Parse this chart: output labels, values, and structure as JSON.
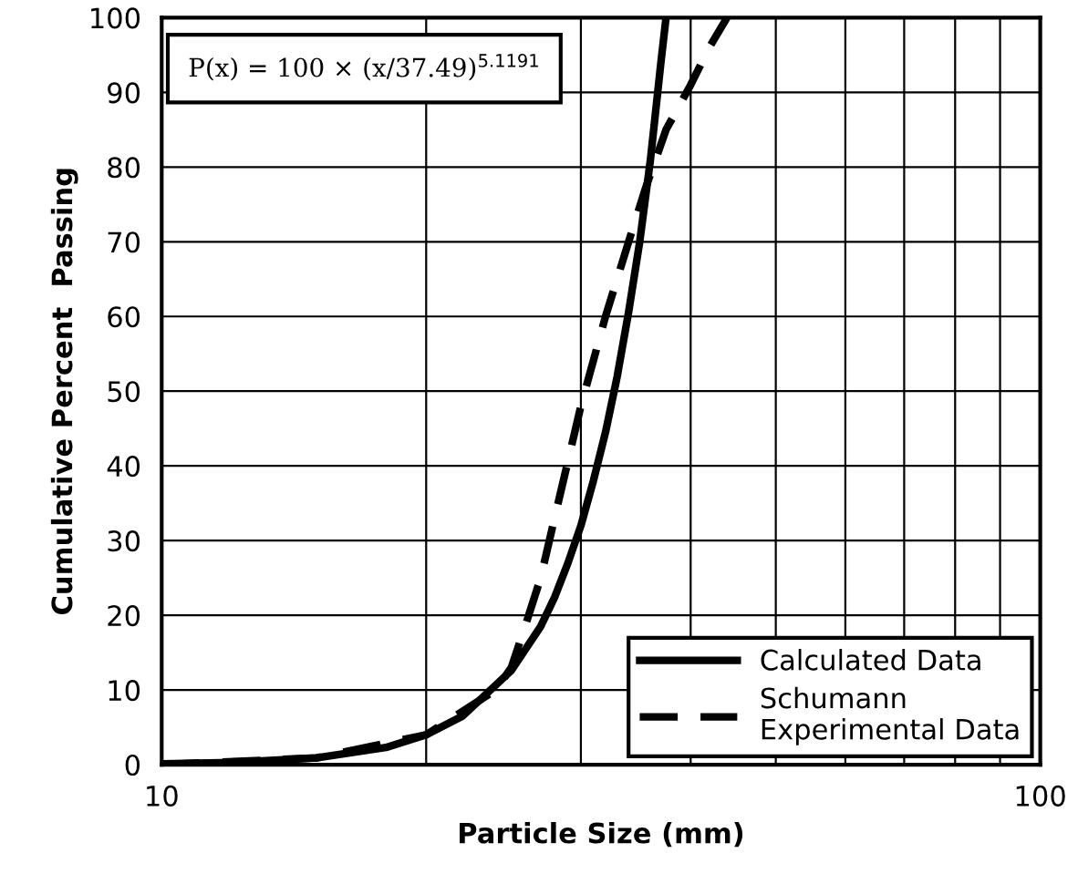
{
  "chart_data": {
    "type": "line",
    "xlabel": "Particle Size (mm)",
    "ylabel": "Cumulative Percent  Passing",
    "annotations": [
      "P(x) = 100 × (x/37.49)$^{5.1191}$"
    ],
    "log": "x",
    "xlim": [
      10,
      100
    ],
    "ylim": [
      0,
      100
    ],
    "xticks": [
      10,
      {
        "value": 20,
        "label": null
      },
      {
        "value": 30,
        "label": null
      },
      {
        "value": 40,
        "label": null
      },
      {
        "value": 50,
        "label": null
      },
      {
        "value": 60,
        "label": null
      },
      {
        "value": 70,
        "label": null
      },
      {
        "value": 80,
        "label": null
      },
      {
        "value": 90,
        "label": null
      },
      100
    ],
    "yticks": [
      0,
      10,
      20,
      30,
      40,
      50,
      60,
      70,
      80,
      90,
      100
    ],
    "grid": true,
    "legend": "bottom right",
    "marker": "none",
    "series": [
      {
        "name": "Calculated Data",
        "color": "#000000",
        "line_style": "solid",
        "x": [
          10,
          12,
          15,
          18,
          20,
          22,
          25,
          27,
          28,
          29,
          30,
          31,
          32,
          33,
          34,
          35,
          36,
          37,
          37.5
        ],
        "values": [
          0.1,
          0.3,
          0.9,
          2.3,
          4.0,
          6.5,
          12.6,
          18.5,
          22.4,
          27,
          32,
          38,
          44.5,
          52,
          60.6,
          70,
          81,
          94,
          100
        ]
      },
      {
        "name": "Schumann\nExperimental Data",
        "color": "#000000",
        "line_style": "dashed",
        "x": [
          10,
          15,
          20,
          24,
          25,
          26,
          27,
          28,
          30,
          32,
          34,
          35.5,
          37.5,
          40,
          42,
          44
        ],
        "values": [
          0,
          0.9,
          4,
          10,
          13,
          19,
          25,
          33,
          48,
          60,
          70,
          77,
          85,
          91,
          96,
          100
        ]
      }
    ]
  }
}
